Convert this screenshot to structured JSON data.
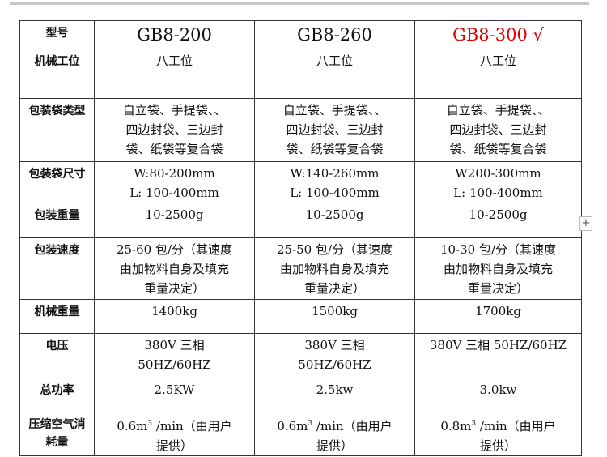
{
  "header_label": "型号",
  "models": [
    {
      "name": "GB8-200",
      "color": "#111111"
    },
    {
      "name": "GB8-260",
      "color": "#111111"
    },
    {
      "name": "GB8-300 √",
      "color": "#e00000"
    }
  ],
  "rows": [
    {
      "label": "机械工位",
      "values": [
        [
          "八工位"
        ],
        [
          "八工位"
        ],
        [
          "八工位"
        ]
      ]
    },
    {
      "label": "包装袋类型",
      "values": [
        [
          "自立袋、手提袋、、",
          "四边封袋、三边封",
          "袋、纸袋等复合袋"
        ],
        [
          "自立袋、手提袋、、",
          "四边封袋、三边封",
          "袋、纸袋等复合袋"
        ],
        [
          "自立袋、手提袋、、",
          "四边封袋、三边封",
          "袋、纸袋等复合袋"
        ]
      ]
    },
    {
      "label": "包装袋尺寸",
      "values": [
        [
          "W:80-200mm",
          "L: 100-400mm"
        ],
        [
          "W:140-260mm",
          "L: 100-400mm"
        ],
        [
          "W200-300mm",
          "L: 100-400mm"
        ]
      ]
    },
    {
      "label": "包装重量",
      "values": [
        [
          "10-2500g"
        ],
        [
          "10-2500g"
        ],
        [
          "10-2500g"
        ]
      ]
    },
    {
      "label": "包装速度",
      "values": [
        [
          "25-60 包/分（其速度",
          "由加物料自身及填充",
          "重量决定）"
        ],
        [
          "25-50 包/分（其速度",
          "由加物料自身及填充",
          "重量决定）"
        ],
        [
          "10-30 包/分（其速度",
          "由加物料自身及填充",
          "重量决定）"
        ]
      ]
    },
    {
      "label": "机械重量",
      "values": [
        [
          "1400kg"
        ],
        [
          "1500kg"
        ],
        [
          "1700kg"
        ]
      ]
    },
    {
      "label": "电压",
      "values": [
        [
          "380V 三相",
          "50HZ/60HZ"
        ],
        [
          "380V 三相",
          "50HZ/60HZ"
        ],
        [
          "380V 三相 50HZ/60HZ"
        ]
      ]
    },
    {
      "label": "总功率",
      "values": [
        [
          "2.5KW"
        ],
        [
          "2.5kw"
        ],
        [
          "3.0kw"
        ]
      ]
    }
  ],
  "air": {
    "label": "压缩空气消耗量",
    "unit_sup": "3",
    "values": [
      {
        "pre": "0.6m",
        "post": "/min（由用户",
        "line2": "提供）"
      },
      {
        "pre": "0.6m",
        "post": "/min（由用户",
        "line2": "提供）"
      },
      {
        "pre": "0.8m",
        "post": "/min（由用户",
        "line2": "提供）"
      }
    ]
  },
  "plus_button": "+"
}
